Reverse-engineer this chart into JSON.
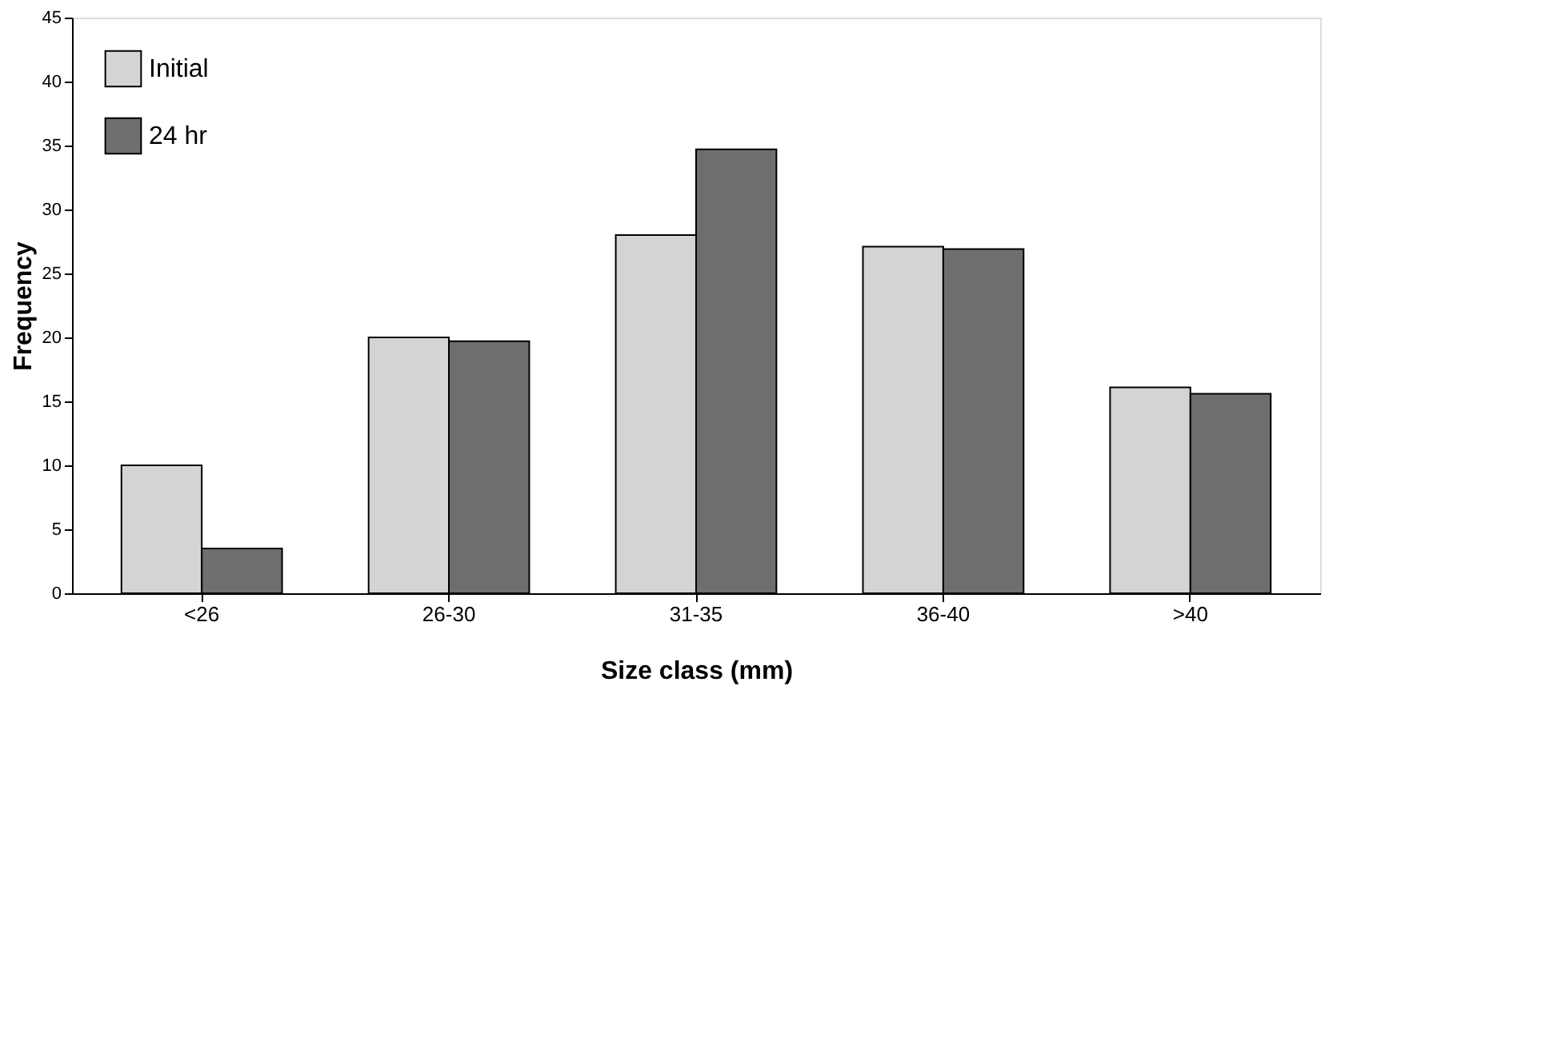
{
  "chart_data": {
    "type": "bar",
    "xlabel": "Size class (mm)",
    "ylabel": "Frequency",
    "categories": [
      "<26",
      "26-30",
      "31-35",
      "36-40",
      ">40"
    ],
    "series": [
      {
        "name": "Initial",
        "color": "#d4d4d4",
        "values": [
          10,
          20,
          28,
          27.1,
          16.1
        ]
      },
      {
        "name": "24 hr",
        "color": "#6e6e6e",
        "values": [
          3.5,
          19.7,
          34.7,
          26.9,
          15.6
        ]
      }
    ],
    "ylim": [
      0,
      45
    ],
    "yticks": [
      0,
      5,
      10,
      15,
      20,
      25,
      30,
      35,
      40,
      45
    ],
    "grid": false,
    "legend": "top left"
  }
}
